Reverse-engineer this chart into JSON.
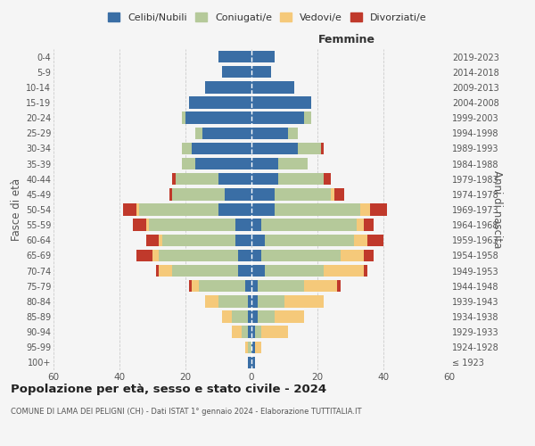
{
  "age_groups": [
    "100+",
    "95-99",
    "90-94",
    "85-89",
    "80-84",
    "75-79",
    "70-74",
    "65-69",
    "60-64",
    "55-59",
    "50-54",
    "45-49",
    "40-44",
    "35-39",
    "30-34",
    "25-29",
    "20-24",
    "15-19",
    "10-14",
    "5-9",
    "0-4"
  ],
  "birth_years": [
    "≤ 1923",
    "1924-1928",
    "1929-1933",
    "1934-1938",
    "1939-1943",
    "1944-1948",
    "1949-1953",
    "1954-1958",
    "1959-1963",
    "1964-1968",
    "1969-1973",
    "1974-1978",
    "1979-1983",
    "1984-1988",
    "1989-1993",
    "1994-1998",
    "1999-2003",
    "2004-2008",
    "2009-2013",
    "2014-2018",
    "2019-2023"
  ],
  "colors": {
    "celibi": "#3a6ea5",
    "coniugati": "#b5c99a",
    "vedovi": "#f5c97a",
    "divorziati": "#c0392b"
  },
  "males": {
    "celibi": [
      1,
      0,
      1,
      1,
      1,
      2,
      4,
      4,
      5,
      5,
      10,
      8,
      10,
      17,
      18,
      15,
      20,
      19,
      14,
      9,
      10
    ],
    "coniugati": [
      0,
      1,
      2,
      5,
      9,
      14,
      20,
      24,
      22,
      26,
      24,
      16,
      13,
      4,
      3,
      2,
      1,
      0,
      0,
      0,
      0
    ],
    "vedovi": [
      0,
      1,
      3,
      3,
      4,
      2,
      4,
      2,
      1,
      1,
      1,
      0,
      0,
      0,
      0,
      0,
      0,
      0,
      0,
      0,
      0
    ],
    "divorziati": [
      0,
      0,
      0,
      0,
      0,
      1,
      1,
      5,
      4,
      4,
      4,
      1,
      1,
      0,
      0,
      0,
      0,
      0,
      0,
      0,
      0
    ]
  },
  "females": {
    "celibi": [
      1,
      1,
      1,
      2,
      2,
      2,
      4,
      3,
      4,
      3,
      7,
      7,
      8,
      8,
      14,
      11,
      16,
      18,
      13,
      6,
      7
    ],
    "coniugati": [
      0,
      0,
      2,
      5,
      8,
      14,
      18,
      24,
      27,
      29,
      26,
      17,
      14,
      9,
      7,
      3,
      2,
      0,
      0,
      0,
      0
    ],
    "vedovi": [
      0,
      2,
      8,
      9,
      12,
      10,
      12,
      7,
      4,
      2,
      3,
      1,
      0,
      0,
      0,
      0,
      0,
      0,
      0,
      0,
      0
    ],
    "divorziati": [
      0,
      0,
      0,
      0,
      0,
      1,
      1,
      3,
      5,
      3,
      5,
      3,
      2,
      0,
      1,
      0,
      0,
      0,
      0,
      0,
      0
    ]
  },
  "xlim": 60,
  "title": "Popolazione per età, sesso e stato civile - 2024",
  "subtitle": "COMUNE DI LAMA DEI PELIGNI (CH) - Dati ISTAT 1° gennaio 2024 - Elaborazione TUTTITALIA.IT",
  "ylabel_left": "Fasce di età",
  "ylabel_right": "Anni di nascita",
  "legend_labels": [
    "Celibi/Nubili",
    "Coniugati/e",
    "Vedovi/e",
    "Divorziati/e"
  ],
  "femmine_label": "Femmine",
  "bg_color": "#f5f5f5",
  "grid_color": "#cccccc"
}
